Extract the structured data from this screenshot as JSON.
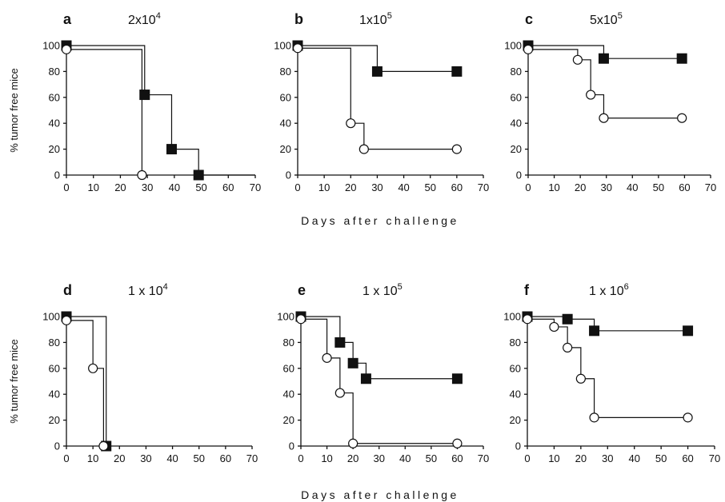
{
  "x_axis_label": "Days after challenge",
  "y_axis_label": "% tumor free mice",
  "colors": {
    "ink": "#111111",
    "open_marker_fill": "#ffffff"
  },
  "chart_data": [
    {
      "type": "line",
      "step": true,
      "panel": "a",
      "title_base": "2x10",
      "title_exp": "4",
      "xlim": [
        0,
        70
      ],
      "ylim": [
        0,
        100
      ],
      "xticks": [
        0,
        10,
        20,
        30,
        40,
        50,
        60,
        70
      ],
      "yticks": [
        0,
        20,
        40,
        60,
        80,
        100
      ],
      "series": [
        {
          "marker": "filled-square",
          "x": [
            0,
            29,
            39,
            49
          ],
          "y": [
            100,
            62,
            20,
            0
          ],
          "end_x": 70
        },
        {
          "marker": "open-circle",
          "x": [
            0,
            28
          ],
          "y": [
            97,
            0
          ],
          "end_x": 28
        }
      ]
    },
    {
      "type": "line",
      "step": true,
      "panel": "b",
      "title_base": "1x10",
      "title_exp": "5",
      "xlim": [
        0,
        70
      ],
      "ylim": [
        0,
        100
      ],
      "xticks": [
        0,
        10,
        20,
        30,
        40,
        50,
        60,
        70
      ],
      "yticks": [
        0,
        20,
        40,
        60,
        80,
        100
      ],
      "series": [
        {
          "marker": "filled-square",
          "x": [
            0,
            30,
            60
          ],
          "y": [
            100,
            80,
            80
          ],
          "end_x": 60
        },
        {
          "marker": "open-circle",
          "x": [
            0,
            20,
            25,
            60
          ],
          "y": [
            98,
            40,
            20,
            20
          ],
          "end_x": 60
        }
      ]
    },
    {
      "type": "line",
      "step": true,
      "panel": "c",
      "title_base": "5x10",
      "title_exp": "5",
      "xlim": [
        0,
        70
      ],
      "ylim": [
        0,
        100
      ],
      "xticks": [
        0,
        10,
        20,
        30,
        40,
        50,
        60,
        70
      ],
      "yticks": [
        0,
        20,
        40,
        60,
        80,
        100
      ],
      "series": [
        {
          "marker": "filled-square",
          "x": [
            0,
            29,
            59
          ],
          "y": [
            100,
            90,
            90
          ],
          "end_x": 59
        },
        {
          "marker": "open-circle",
          "x": [
            0,
            19,
            24,
            29,
            59
          ],
          "y": [
            97,
            89,
            62,
            44,
            44
          ],
          "end_x": 59
        }
      ]
    },
    {
      "type": "line",
      "step": true,
      "panel": "d",
      "title_base": "1 x 10",
      "title_exp": "4",
      "xlim": [
        0,
        70
      ],
      "ylim": [
        0,
        100
      ],
      "xticks": [
        0,
        10,
        20,
        30,
        40,
        50,
        60,
        70
      ],
      "yticks": [
        0,
        20,
        40,
        60,
        80,
        100
      ],
      "series": [
        {
          "marker": "filled-square",
          "x": [
            0,
            15
          ],
          "y": [
            100,
            0
          ],
          "end_x": 15
        },
        {
          "marker": "open-circle",
          "x": [
            0,
            10,
            14
          ],
          "y": [
            97,
            60,
            0
          ],
          "end_x": 14
        }
      ]
    },
    {
      "type": "line",
      "step": true,
      "panel": "e",
      "title_base": "1 x 10",
      "title_exp": "5",
      "xlim": [
        0,
        70
      ],
      "ylim": [
        0,
        100
      ],
      "xticks": [
        0,
        10,
        20,
        30,
        40,
        50,
        60,
        70
      ],
      "yticks": [
        0,
        20,
        40,
        60,
        80,
        100
      ],
      "series": [
        {
          "marker": "filled-square",
          "x": [
            0,
            15,
            20,
            25,
            60
          ],
          "y": [
            100,
            80,
            64,
            52,
            52
          ],
          "end_x": 60
        },
        {
          "marker": "open-circle",
          "x": [
            0,
            10,
            15,
            20,
            60
          ],
          "y": [
            98,
            68,
            41,
            2,
            2
          ],
          "end_x": 60
        }
      ]
    },
    {
      "type": "line",
      "step": true,
      "panel": "f",
      "title_base": "1 x 10",
      "title_exp": "6",
      "xlim": [
        0,
        70
      ],
      "ylim": [
        0,
        100
      ],
      "xticks": [
        0,
        10,
        20,
        30,
        40,
        50,
        60,
        70
      ],
      "yticks": [
        0,
        20,
        40,
        60,
        80,
        100
      ],
      "series": [
        {
          "marker": "filled-square",
          "x": [
            0,
            15,
            25,
            60
          ],
          "y": [
            100,
            98,
            89,
            89
          ],
          "end_x": 60
        },
        {
          "marker": "open-circle",
          "x": [
            0,
            10,
            15,
            20,
            25,
            60
          ],
          "y": [
            98,
            92,
            76,
            52,
            22,
            22
          ],
          "end_x": 60
        }
      ]
    }
  ]
}
